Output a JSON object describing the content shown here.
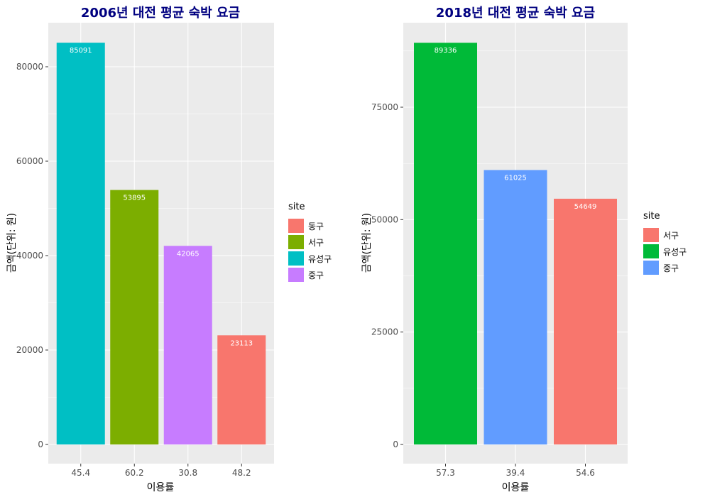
{
  "chart_data": [
    {
      "type": "bar",
      "title": "2006년 대전 평균 숙박 요금",
      "xlabel": "이용률",
      "ylabel": "금액(단위: 원)",
      "categories": [
        "45.4",
        "60.2",
        "30.8",
        "48.2"
      ],
      "values": [
        85091,
        53895,
        42065,
        23113
      ],
      "bar_labels": [
        "85091",
        "53895",
        "42065",
        "23113"
      ],
      "bar_sites": [
        "유성구",
        "서구",
        "중구",
        "동구"
      ],
      "ylim": [
        0,
        90000
      ],
      "yticks": [
        0,
        20000,
        40000,
        60000,
        80000
      ],
      "ytick_labels": [
        "0",
        "20000",
        "40000",
        "60000",
        "80000"
      ],
      "grid": true,
      "legend": {
        "title": "site",
        "placement": "right",
        "items": [
          {
            "label": "동구",
            "color": "#F8766D"
          },
          {
            "label": "서구",
            "color": "#7CAE00"
          },
          {
            "label": "유성구",
            "color": "#00BFC4"
          },
          {
            "label": "중구",
            "color": "#C77CFF"
          }
        ]
      }
    },
    {
      "type": "bar",
      "title": "2018년 대전 평균 숙박 요금",
      "xlabel": "이용률",
      "ylabel": "금액(단위: 원)",
      "categories": [
        "57.3",
        "39.4",
        "54.6"
      ],
      "values": [
        89336,
        61025,
        54649
      ],
      "bar_labels": [
        "89336",
        "61025",
        "54649"
      ],
      "bar_sites": [
        "유성구",
        "중구",
        "서구"
      ],
      "ylim": [
        0,
        94000
      ],
      "yticks": [
        0,
        25000,
        50000,
        75000
      ],
      "ytick_labels": [
        "0",
        "25000",
        "50000",
        "75000"
      ],
      "grid": true,
      "legend": {
        "title": "site",
        "placement": "right",
        "items": [
          {
            "label": "서구",
            "color": "#F8766D"
          },
          {
            "label": "유성구",
            "color": "#00BA38"
          },
          {
            "label": "중구",
            "color": "#619CFF"
          }
        ]
      }
    }
  ]
}
